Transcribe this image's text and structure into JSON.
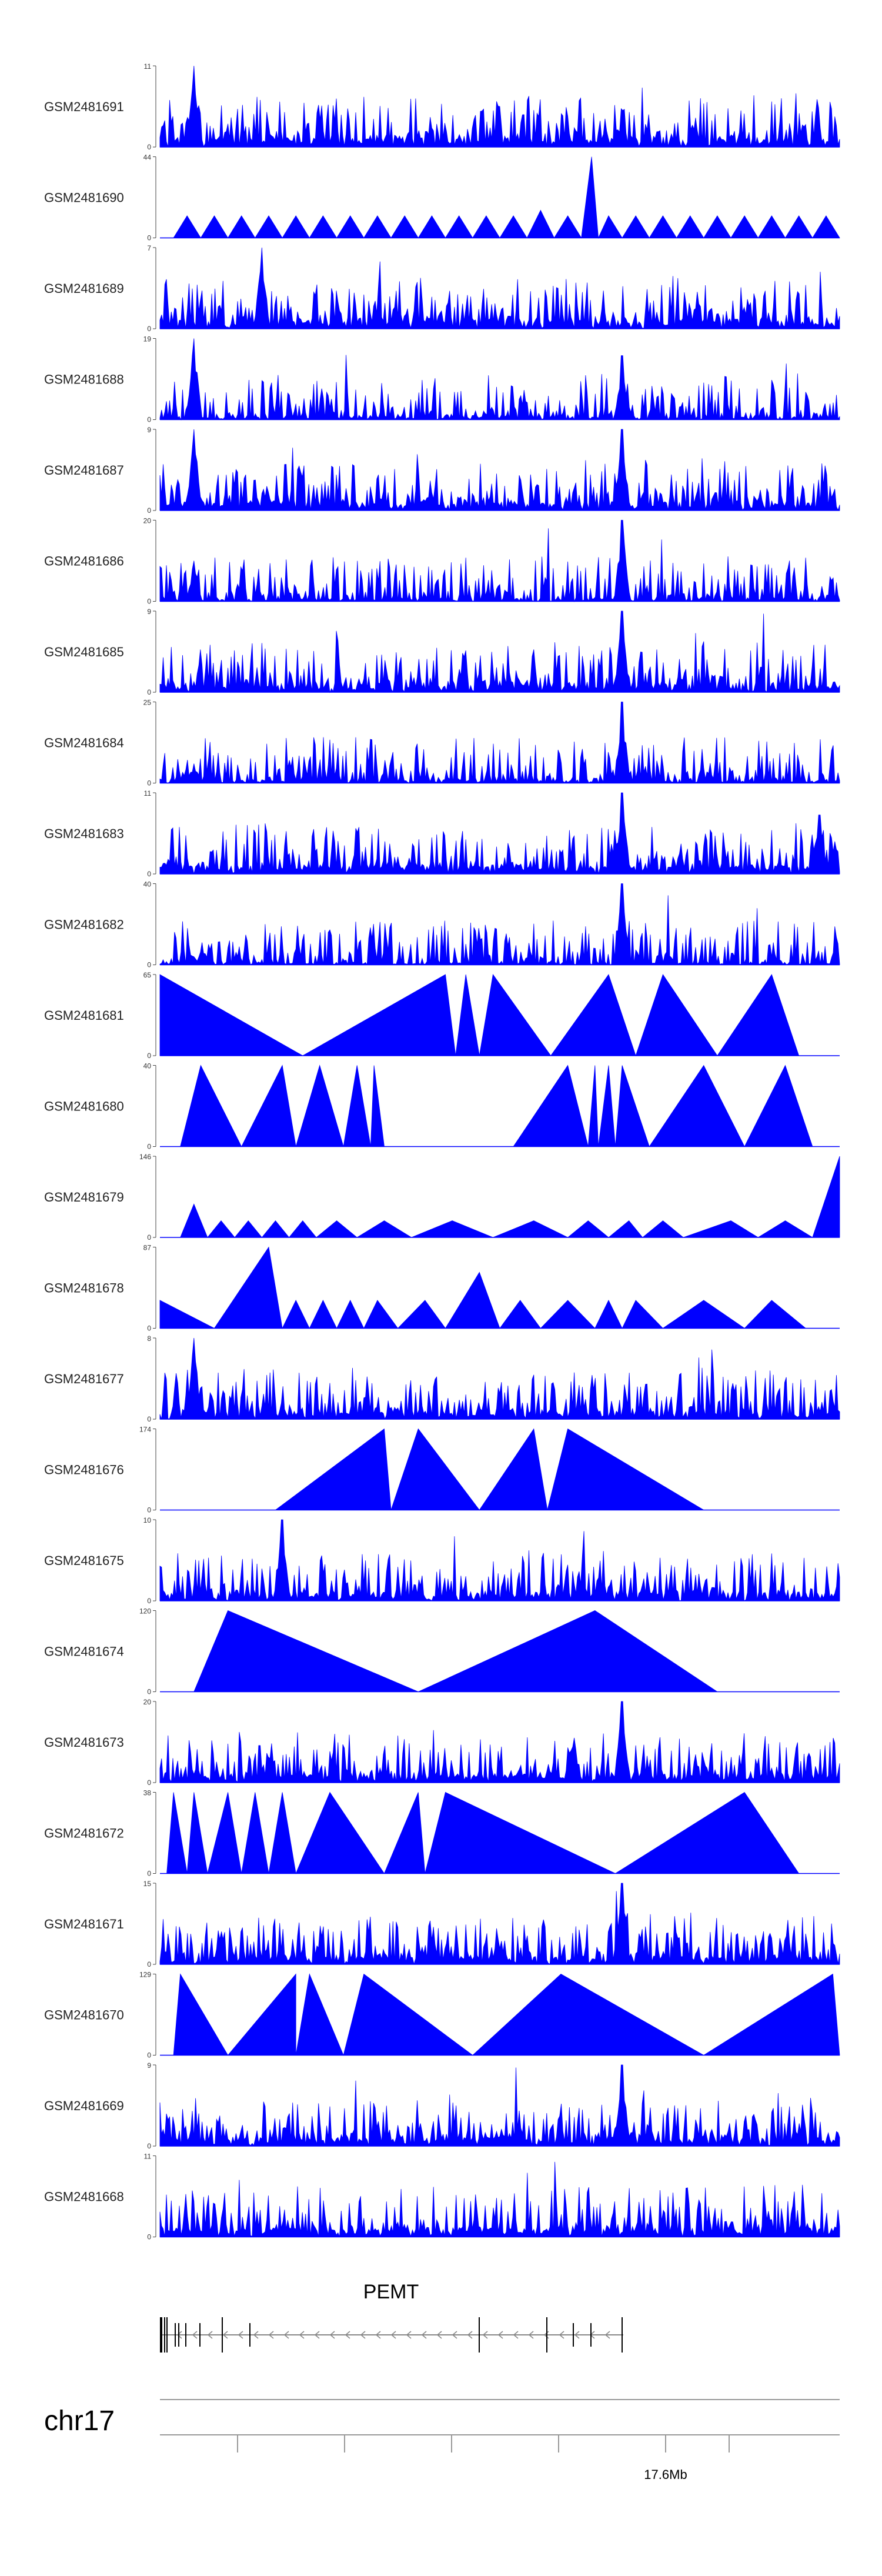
{
  "colors": {
    "signal": "#0000ff",
    "axis": "#444444",
    "gene": "#000000",
    "arrow": "#888888"
  },
  "chart_data": {
    "type": "area",
    "chromosome": "chr17",
    "x_axis_label": "17.6Mb",
    "x_ticks": [
      1,
      2,
      3,
      4,
      5,
      6
    ],
    "gene": {
      "name": "PEMT",
      "strand": "-"
    },
    "tracks": [
      {
        "name": "GSM2481691",
        "ymax": 11,
        "style": "dense",
        "peaks": [
          [
            0.05,
            11
          ]
        ],
        "seed": 1
      },
      {
        "name": "GSM2481690",
        "ymax": 44,
        "style": "tri",
        "points": [
          [
            0.02,
            0
          ],
          [
            0.04,
            12
          ],
          [
            0.06,
            0
          ],
          [
            0.08,
            12
          ],
          [
            0.1,
            0
          ],
          [
            0.12,
            12
          ],
          [
            0.14,
            0
          ],
          [
            0.16,
            12
          ],
          [
            0.18,
            0
          ],
          [
            0.2,
            12
          ],
          [
            0.22,
            0
          ],
          [
            0.24,
            12
          ],
          [
            0.26,
            0
          ],
          [
            0.28,
            12
          ],
          [
            0.3,
            0
          ],
          [
            0.32,
            12
          ],
          [
            0.34,
            0
          ],
          [
            0.36,
            12
          ],
          [
            0.38,
            0
          ],
          [
            0.4,
            12
          ],
          [
            0.42,
            0
          ],
          [
            0.44,
            12
          ],
          [
            0.46,
            0
          ],
          [
            0.48,
            12
          ],
          [
            0.5,
            0
          ],
          [
            0.52,
            12
          ],
          [
            0.54,
            0
          ],
          [
            0.56,
            15
          ],
          [
            0.58,
            0
          ],
          [
            0.6,
            12
          ],
          [
            0.62,
            0
          ],
          [
            0.635,
            44
          ],
          [
            0.645,
            0
          ],
          [
            0.66,
            12
          ],
          [
            0.68,
            0
          ],
          [
            0.7,
            12
          ],
          [
            0.72,
            0
          ],
          [
            0.74,
            12
          ],
          [
            0.76,
            0
          ],
          [
            0.78,
            12
          ],
          [
            0.8,
            0
          ],
          [
            0.82,
            12
          ],
          [
            0.84,
            0
          ],
          [
            0.86,
            12
          ],
          [
            0.88,
            0
          ],
          [
            0.9,
            12
          ],
          [
            0.92,
            0
          ],
          [
            0.94,
            12
          ],
          [
            0.96,
            0
          ],
          [
            0.98,
            12
          ],
          [
            1.0,
            0
          ]
        ],
        "seed": 2
      },
      {
        "name": "GSM2481689",
        "ymax": 7,
        "style": "dense",
        "peaks": [
          [
            0.15,
            7
          ]
        ],
        "seed": 3
      },
      {
        "name": "GSM2481688",
        "ymax": 19,
        "style": "dense",
        "peaks": [
          [
            0.05,
            19
          ],
          [
            0.68,
            15
          ]
        ],
        "base": 0.06,
        "seed": 4
      },
      {
        "name": "GSM2481687",
        "ymax": 9,
        "style": "dense",
        "peaks": [
          [
            0.05,
            9
          ],
          [
            0.68,
            9
          ]
        ],
        "seed": 5
      },
      {
        "name": "GSM2481686",
        "ymax": 20,
        "style": "dense",
        "peaks": [
          [
            0.05,
            10
          ],
          [
            0.68,
            20
          ]
        ],
        "base": 0.06,
        "seed": 6
      },
      {
        "name": "GSM2481685",
        "ymax": 9,
        "style": "dense",
        "peaks": [
          [
            0.68,
            9
          ]
        ],
        "seed": 7
      },
      {
        "name": "GSM2481684",
        "ymax": 25,
        "style": "dense",
        "peaks": [
          [
            0.05,
            6
          ],
          [
            0.68,
            25
          ]
        ],
        "base": 0.05,
        "seed": 8
      },
      {
        "name": "GSM2481683",
        "ymax": 11,
        "style": "dense",
        "peaks": [
          [
            0.68,
            11
          ],
          [
            0.97,
            8
          ]
        ],
        "seed": 9
      },
      {
        "name": "GSM2481682",
        "ymax": 40,
        "style": "dense",
        "peaks": [
          [
            0.05,
            4
          ],
          [
            0.68,
            40
          ]
        ],
        "base": 0.03,
        "seed": 10
      },
      {
        "name": "GSM2481681",
        "ymax": 65,
        "style": "tri",
        "points": [
          [
            0,
            65
          ],
          [
            0.21,
            0
          ],
          [
            0.42,
            65
          ],
          [
            0.435,
            0
          ],
          [
            0.45,
            65
          ],
          [
            0.47,
            0
          ],
          [
            0.49,
            65
          ],
          [
            0.575,
            0
          ],
          [
            0.66,
            65
          ],
          [
            0.7,
            0
          ],
          [
            0.74,
            65
          ],
          [
            0.82,
            0
          ],
          [
            0.9,
            65
          ],
          [
            0.94,
            0
          ]
        ],
        "seed": 11
      },
      {
        "name": "GSM2481680",
        "ymax": 40,
        "style": "tri",
        "points": [
          [
            0.03,
            0
          ],
          [
            0.06,
            40
          ],
          [
            0.12,
            0
          ],
          [
            0.18,
            40
          ],
          [
            0.2,
            0
          ],
          [
            0.235,
            40
          ],
          [
            0.27,
            0
          ],
          [
            0.29,
            40
          ],
          [
            0.31,
            0
          ],
          [
            0.315,
            40
          ],
          [
            0.33,
            0
          ],
          [
            0.385,
            0
          ],
          [
            0.52,
            0
          ],
          [
            0.6,
            40
          ],
          [
            0.63,
            0
          ],
          [
            0.64,
            40
          ],
          [
            0.645,
            0
          ],
          [
            0.66,
            40
          ],
          [
            0.67,
            0
          ],
          [
            0.68,
            40
          ],
          [
            0.72,
            0
          ],
          [
            0.8,
            40
          ],
          [
            0.86,
            0
          ],
          [
            0.92,
            40
          ],
          [
            0.96,
            0
          ]
        ],
        "seed": 12
      },
      {
        "name": "GSM2481679",
        "ymax": 146,
        "style": "tri",
        "points": [
          [
            0.03,
            0
          ],
          [
            0.05,
            60
          ],
          [
            0.07,
            0
          ],
          [
            0.09,
            30
          ],
          [
            0.11,
            0
          ],
          [
            0.13,
            30
          ],
          [
            0.15,
            0
          ],
          [
            0.17,
            30
          ],
          [
            0.19,
            0
          ],
          [
            0.21,
            30
          ],
          [
            0.23,
            0
          ],
          [
            0.26,
            30
          ],
          [
            0.29,
            0
          ],
          [
            0.33,
            30
          ],
          [
            0.37,
            0
          ],
          [
            0.43,
            30
          ],
          [
            0.49,
            0
          ],
          [
            0.55,
            30
          ],
          [
            0.6,
            0
          ],
          [
            0.63,
            30
          ],
          [
            0.66,
            0
          ],
          [
            0.69,
            30
          ],
          [
            0.71,
            0
          ],
          [
            0.74,
            30
          ],
          [
            0.77,
            0
          ],
          [
            0.84,
            30
          ],
          [
            0.88,
            0
          ],
          [
            0.92,
            30
          ],
          [
            0.96,
            0
          ],
          [
            1.0,
            146
          ]
        ],
        "seed": 13
      },
      {
        "name": "GSM2481678",
        "ymax": 87,
        "style": "tri",
        "points": [
          [
            0,
            30
          ],
          [
            0.08,
            0
          ],
          [
            0.16,
            87
          ],
          [
            0.18,
            0
          ],
          [
            0.2,
            30
          ],
          [
            0.22,
            0
          ],
          [
            0.24,
            30
          ],
          [
            0.26,
            0
          ],
          [
            0.28,
            30
          ],
          [
            0.3,
            0
          ],
          [
            0.32,
            30
          ],
          [
            0.35,
            0
          ],
          [
            0.39,
            30
          ],
          [
            0.42,
            0
          ],
          [
            0.47,
            60
          ],
          [
            0.5,
            0
          ],
          [
            0.53,
            30
          ],
          [
            0.56,
            0
          ],
          [
            0.6,
            30
          ],
          [
            0.64,
            0
          ],
          [
            0.66,
            30
          ],
          [
            0.68,
            0
          ],
          [
            0.7,
            30
          ],
          [
            0.74,
            0
          ],
          [
            0.8,
            30
          ],
          [
            0.86,
            0
          ],
          [
            0.9,
            30
          ],
          [
            0.95,
            0
          ]
        ],
        "seed": 14
      },
      {
        "name": "GSM2481677",
        "ymax": 8,
        "style": "dense",
        "peaks": [
          [
            0.05,
            8
          ]
        ],
        "seed": 15
      },
      {
        "name": "GSM2481676",
        "ymax": 174,
        "style": "tri",
        "points": [
          [
            0.17,
            0
          ],
          [
            0.33,
            174
          ],
          [
            0.34,
            0
          ],
          [
            0.38,
            174
          ],
          [
            0.47,
            0
          ],
          [
            0.55,
            174
          ],
          [
            0.57,
            0
          ],
          [
            0.6,
            174
          ],
          [
            0.8,
            0
          ]
        ],
        "seed": 16
      },
      {
        "name": "GSM2481675",
        "ymax": 10,
        "style": "dense",
        "peaks": [
          [
            0.18,
            10
          ]
        ],
        "seed": 17
      },
      {
        "name": "GSM2481674",
        "ymax": 120,
        "style": "tri",
        "points": [
          [
            0.05,
            0
          ],
          [
            0.1,
            120
          ],
          [
            0.38,
            0
          ],
          [
            0.64,
            120
          ],
          [
            0.82,
            0
          ]
        ],
        "seed": 18
      },
      {
        "name": "GSM2481673",
        "ymax": 20,
        "style": "dense",
        "peaks": [
          [
            0.68,
            20
          ]
        ],
        "seed": 19
      },
      {
        "name": "GSM2481672",
        "ymax": 38,
        "style": "tri",
        "points": [
          [
            0.01,
            0
          ],
          [
            0.02,
            38
          ],
          [
            0.04,
            0
          ],
          [
            0.05,
            38
          ],
          [
            0.07,
            0
          ],
          [
            0.1,
            38
          ],
          [
            0.12,
            0
          ],
          [
            0.14,
            38
          ],
          [
            0.16,
            0
          ],
          [
            0.18,
            38
          ],
          [
            0.2,
            0
          ],
          [
            0.25,
            38
          ],
          [
            0.33,
            0
          ],
          [
            0.38,
            38
          ],
          [
            0.39,
            0
          ],
          [
            0.42,
            38
          ],
          [
            0.67,
            0
          ],
          [
            0.86,
            38
          ],
          [
            0.94,
            0
          ]
        ],
        "seed": 20
      },
      {
        "name": "GSM2481671",
        "ymax": 15,
        "style": "dense",
        "peaks": [
          [
            0.68,
            15
          ]
        ],
        "seed": 21
      },
      {
        "name": "GSM2481670",
        "ymax": 129,
        "style": "tri",
        "points": [
          [
            0.02,
            0
          ],
          [
            0.03,
            129
          ],
          [
            0.1,
            0
          ],
          [
            0.2,
            129
          ],
          [
            0.2,
            0
          ],
          [
            0.22,
            129
          ],
          [
            0.27,
            0
          ],
          [
            0.3,
            129
          ],
          [
            0.46,
            0
          ],
          [
            0.59,
            129
          ],
          [
            0.8,
            0
          ],
          [
            0.99,
            129
          ],
          [
            1.0,
            0
          ]
        ],
        "seed": 22
      },
      {
        "name": "GSM2481669",
        "ymax": 9,
        "style": "dense",
        "peaks": [
          [
            0.68,
            9
          ]
        ],
        "seed": 23
      },
      {
        "name": "GSM2481668",
        "ymax": 11,
        "style": "dense",
        "peaks": [],
        "seed": 24
      }
    ]
  }
}
